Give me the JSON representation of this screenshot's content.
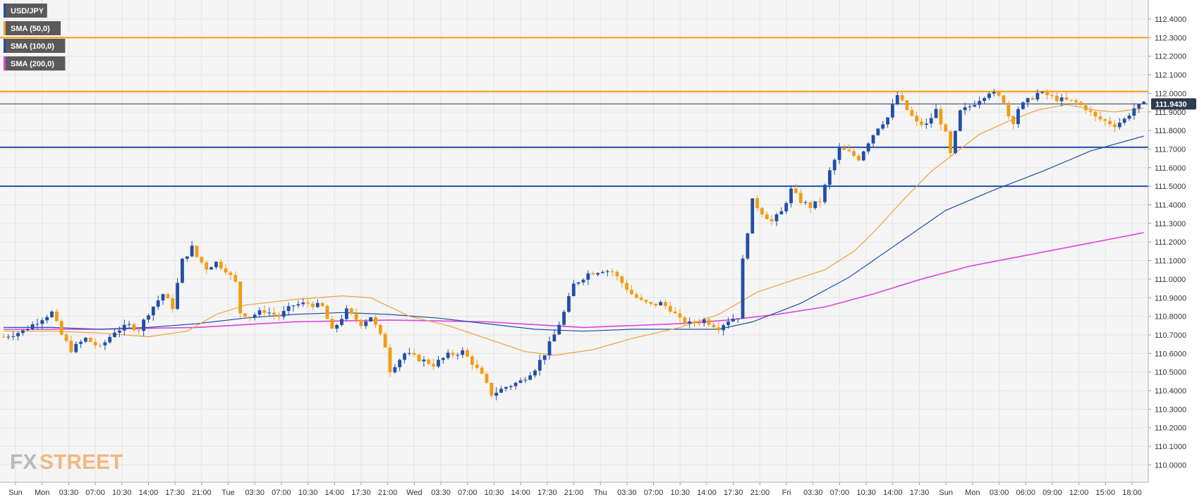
{
  "chart_data": {
    "type": "candlestick",
    "symbol": "USD/JPY",
    "legend": [
      {
        "label": "USD/JPY",
        "color": "#1f4fa8"
      },
      {
        "label": "SMA (50,0)",
        "color": "#f0a040"
      },
      {
        "label": "SMA (100,0)",
        "color": "#1f4fa8"
      },
      {
        "label": "SMA (200,0)",
        "color": "#e040e0"
      }
    ],
    "ylim": [
      109.94,
      112.51
    ],
    "y_ticks": [
      "112.4000",
      "112.3000",
      "112.2000",
      "112.1000",
      "112.0000",
      "111.9000",
      "111.8000",
      "111.7000",
      "111.6000",
      "111.5000",
      "111.4000",
      "111.3000",
      "111.2000",
      "111.1000",
      "111.0000",
      "110.9000",
      "110.8000",
      "110.7000",
      "110.6000",
      "110.5000",
      "110.4000",
      "110.3000",
      "110.2000",
      "110.1000",
      "110.0000"
    ],
    "x_ticks": [
      "Sun",
      "Mon",
      "03:30",
      "07:00",
      "10:30",
      "14:00",
      "17:30",
      "21:00",
      "Tue",
      "03:30",
      "07:00",
      "10:30",
      "14:00",
      "17:30",
      "21:00",
      "Wed",
      "03:30",
      "07:00",
      "10:30",
      "14:00",
      "17:30",
      "21:00",
      "Thu",
      "03:30",
      "07:00",
      "10:30",
      "14:00",
      "17:30",
      "21:00",
      "Fri",
      "03:30",
      "07:00",
      "10:30",
      "14:00",
      "17:30",
      "Sun",
      "Mon",
      "03:00",
      "06:00",
      "09:00",
      "12:00",
      "15:00",
      "18:00"
    ],
    "last_price": "111.9430",
    "horizontal_levels": [
      {
        "value": 112.3,
        "color": "#f39c12"
      },
      {
        "value": 112.01,
        "color": "#f39c12"
      },
      {
        "value": 111.71,
        "color": "#1f4fa8"
      },
      {
        "value": 111.5,
        "color": "#1f4fa8"
      }
    ],
    "colors": {
      "up": "#1f4fa8",
      "down": "#f39c12",
      "sma50": "#f0a040",
      "sma100": "#1f4fa8",
      "sma200": "#e040e0"
    },
    "price_path": [
      [
        0,
        110.69
      ],
      [
        4,
        110.72
      ],
      [
        8,
        110.79
      ],
      [
        10,
        110.82
      ],
      [
        12,
        110.7
      ],
      [
        14,
        110.62
      ],
      [
        17,
        110.68
      ],
      [
        20,
        110.63
      ],
      [
        23,
        110.72
      ],
      [
        26,
        110.75
      ],
      [
        28,
        110.73
      ],
      [
        30,
        110.82
      ],
      [
        33,
        110.92
      ],
      [
        35,
        110.85
      ],
      [
        37,
        111.1
      ],
      [
        39,
        111.17
      ],
      [
        40,
        111.12
      ],
      [
        42,
        111.06
      ],
      [
        44,
        111.09
      ],
      [
        46,
        111.05
      ],
      [
        48,
        110.98
      ],
      [
        49,
        110.82
      ],
      [
        51,
        110.8
      ],
      [
        54,
        110.83
      ],
      [
        57,
        110.8
      ],
      [
        60,
        110.86
      ],
      [
        63,
        110.87
      ],
      [
        66,
        110.85
      ],
      [
        68,
        110.72
      ],
      [
        71,
        110.83
      ],
      [
        74,
        110.76
      ],
      [
        76,
        110.8
      ],
      [
        79,
        110.64
      ],
      [
        80,
        110.51
      ],
      [
        83,
        110.6
      ],
      [
        86,
        110.57
      ],
      [
        89,
        110.54
      ],
      [
        92,
        110.59
      ],
      [
        95,
        110.61
      ],
      [
        97,
        110.55
      ],
      [
        99,
        110.48
      ],
      [
        101,
        110.38
      ],
      [
        104,
        110.42
      ],
      [
        107,
        110.45
      ],
      [
        110,
        110.52
      ],
      [
        112,
        110.6
      ],
      [
        114,
        110.7
      ],
      [
        116,
        110.82
      ],
      [
        118,
        110.97
      ],
      [
        121,
        111.03
      ],
      [
        124,
        111.05
      ],
      [
        126,
        111.04
      ],
      [
        128,
        110.98
      ],
      [
        130,
        110.92
      ],
      [
        132,
        110.88
      ],
      [
        134,
        110.86
      ],
      [
        136,
        110.87
      ],
      [
        138,
        110.84
      ],
      [
        140,
        110.78
      ],
      [
        142,
        110.76
      ],
      [
        145,
        110.78
      ],
      [
        148,
        110.74
      ],
      [
        150,
        110.78
      ],
      [
        152,
        110.8
      ],
      [
        153,
        111.1
      ],
      [
        155,
        111.42
      ],
      [
        157,
        111.36
      ],
      [
        159,
        111.31
      ],
      [
        161,
        111.36
      ],
      [
        163,
        111.48
      ],
      [
        165,
        111.42
      ],
      [
        167,
        111.39
      ],
      [
        169,
        111.42
      ],
      [
        171,
        111.58
      ],
      [
        173,
        111.7
      ],
      [
        175,
        111.68
      ],
      [
        177,
        111.65
      ],
      [
        179,
        111.74
      ],
      [
        181,
        111.82
      ],
      [
        183,
        111.87
      ],
      [
        185,
        111.99
      ],
      [
        187,
        111.91
      ],
      [
        189,
        111.84
      ],
      [
        191,
        111.83
      ],
      [
        193,
        111.91
      ],
      [
        195,
        111.78
      ],
      [
        196,
        111.67
      ],
      [
        198,
        111.9
      ],
      [
        200,
        111.93
      ],
      [
        202,
        111.97
      ],
      [
        204,
        112.01
      ],
      [
        206,
        111.98
      ],
      [
        207,
        111.96
      ],
      [
        208,
        111.88
      ],
      [
        209,
        111.85
      ],
      [
        210,
        111.92
      ],
      [
        212,
        111.96
      ],
      [
        214,
        112.0
      ],
      [
        216,
        111.99
      ],
      [
        218,
        111.97
      ],
      [
        220,
        111.96
      ],
      [
        222,
        111.95
      ],
      [
        224,
        111.92
      ],
      [
        226,
        111.87
      ],
      [
        228,
        111.85
      ],
      [
        230,
        111.83
      ],
      [
        232,
        111.86
      ],
      [
        234,
        111.92
      ],
      [
        236,
        111.94
      ]
    ],
    "sma50": [
      [
        0,
        110.72
      ],
      [
        10,
        110.72
      ],
      [
        20,
        110.71
      ],
      [
        30,
        110.69
      ],
      [
        38,
        110.72
      ],
      [
        44,
        110.81
      ],
      [
        50,
        110.86
      ],
      [
        60,
        110.89
      ],
      [
        70,
        110.91
      ],
      [
        76,
        110.9
      ],
      [
        84,
        110.8
      ],
      [
        92,
        110.75
      ],
      [
        100,
        110.68
      ],
      [
        108,
        110.61
      ],
      [
        114,
        110.59
      ],
      [
        122,
        110.62
      ],
      [
        130,
        110.68
      ],
      [
        140,
        110.74
      ],
      [
        148,
        110.81
      ],
      [
        156,
        110.93
      ],
      [
        164,
        111.0
      ],
      [
        170,
        111.05
      ],
      [
        176,
        111.15
      ],
      [
        180,
        111.25
      ],
      [
        186,
        111.42
      ],
      [
        192,
        111.58
      ],
      [
        196,
        111.66
      ],
      [
        202,
        111.78
      ],
      [
        208,
        111.85
      ],
      [
        214,
        111.91
      ],
      [
        220,
        111.94
      ],
      [
        226,
        111.91
      ],
      [
        230,
        111.9
      ],
      [
        236,
        111.92
      ]
    ],
    "sma100": [
      [
        0,
        110.74
      ],
      [
        10,
        110.74
      ],
      [
        20,
        110.73
      ],
      [
        30,
        110.74
      ],
      [
        40,
        110.76
      ],
      [
        50,
        110.79
      ],
      [
        60,
        110.81
      ],
      [
        70,
        110.82
      ],
      [
        80,
        110.81
      ],
      [
        90,
        110.79
      ],
      [
        100,
        110.76
      ],
      [
        110,
        110.73
      ],
      [
        120,
        110.72
      ],
      [
        130,
        110.73
      ],
      [
        140,
        110.73
      ],
      [
        148,
        110.73
      ],
      [
        155,
        110.77
      ],
      [
        165,
        110.87
      ],
      [
        175,
        111.01
      ],
      [
        185,
        111.19
      ],
      [
        195,
        111.37
      ],
      [
        205,
        111.48
      ],
      [
        215,
        111.58
      ],
      [
        225,
        111.69
      ],
      [
        236,
        111.77
      ]
    ],
    "sma200": [
      [
        0,
        110.73
      ],
      [
        20,
        110.73
      ],
      [
        40,
        110.74
      ],
      [
        60,
        110.77
      ],
      [
        80,
        110.78
      ],
      [
        100,
        110.77
      ],
      [
        120,
        110.74
      ],
      [
        140,
        110.76
      ],
      [
        150,
        110.78
      ],
      [
        160,
        110.81
      ],
      [
        170,
        110.85
      ],
      [
        180,
        110.92
      ],
      [
        190,
        111.0
      ],
      [
        200,
        111.07
      ],
      [
        210,
        111.12
      ],
      [
        220,
        111.17
      ],
      [
        236,
        111.25
      ]
    ]
  }
}
